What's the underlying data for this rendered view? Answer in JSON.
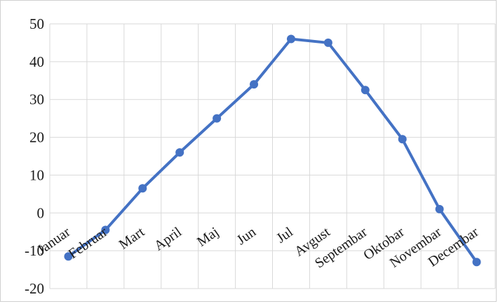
{
  "chart_data": {
    "type": "line",
    "title": "",
    "xlabel": "",
    "ylabel": "",
    "categories": [
      "Januar",
      "Februar",
      "Mart",
      "April",
      "Maj",
      "Jun",
      "Jul",
      "Avgust",
      "Septembar",
      "Oktobar",
      "Novembar",
      "Decembar"
    ],
    "series": [
      {
        "values": [
          -11.5,
          -4.5,
          6.5,
          16,
          25,
          34,
          46,
          45,
          32.5,
          19.5,
          1,
          -13
        ]
      }
    ],
    "ylim": [
      -20,
      50
    ],
    "yticks": [
      -20,
      -10,
      0,
      10,
      20,
      30,
      40,
      50
    ],
    "grid": true,
    "line_color": "#4472C4"
  }
}
